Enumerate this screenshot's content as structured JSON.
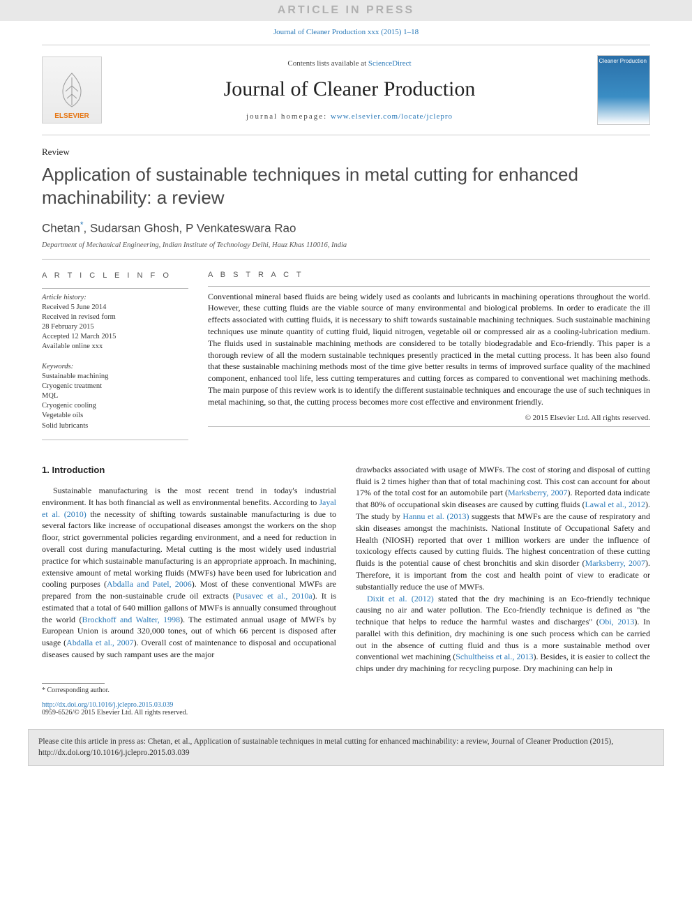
{
  "banner": {
    "text": "ARTICLE IN PRESS"
  },
  "topLink": {
    "journal": "Journal of Cleaner Production",
    "volume": "xxx (2015) 1–18"
  },
  "masthead": {
    "contentsPrefix": "Contents lists available at ",
    "contentsLink": "ScienceDirect",
    "journalName": "Journal of Cleaner Production",
    "homepagePrefix": "journal homepage: ",
    "homepageUrl": "www.elsevier.com/locate/jclepro",
    "publisherLogoText": "ELSEVIER",
    "coverTitle": "Cleaner Production"
  },
  "article": {
    "typeLabel": "Review",
    "title": "Application of sustainable techniques in metal cutting for enhanced machinability: a review",
    "authorsHtml": [
      "Chetan",
      ", Sudarsan Ghosh, P Venkateswara Rao"
    ],
    "corrMark": "*",
    "affiliation": "Department of Mechanical Engineering, Indian Institute of Technology Delhi, Hauz Khas 110016, India"
  },
  "info": {
    "heading": "A R T I C L E  I N F O",
    "historyHead": "Article history:",
    "history": [
      "Received 5 June 2014",
      "Received in revised form",
      "28 February 2015",
      "Accepted 12 March 2015",
      "Available online xxx"
    ],
    "keywordsHead": "Keywords:",
    "keywords": [
      "Sustainable machining",
      "Cryogenic treatment",
      "MQL",
      "Cryogenic cooling",
      "Vegetable oils",
      "Solid lubricants"
    ]
  },
  "abstract": {
    "heading": "A B S T R A C T",
    "text": "Conventional mineral based fluids are being widely used as coolants and lubricants in machining operations throughout the world. However, these cutting fluids are the viable source of many environmental and biological problems. In order to eradicate the ill effects associated with cutting fluids, it is necessary to shift towards sustainable machining techniques. Such sustainable machining techniques use minute quantity of cutting fluid, liquid nitrogen, vegetable oil or compressed air as a cooling-lubrication medium. The fluids used in sustainable machining methods are considered to be totally biodegradable and Eco-friendly. This paper is a thorough review of all the modern sustainable techniques presently practiced in the metal cutting process. It has been also found that these sustainable machining methods most of the time give better results in terms of improved surface quality of the machined component, enhanced tool life, less cutting temperatures and cutting forces as compared to conventional wet machining methods. The main purpose of this review work is to identify the different sustainable techniques and encourage the use of such techniques in metal machining, so that, the cutting process becomes more cost effective and environment friendly.",
    "copyright": "© 2015 Elsevier Ltd. All rights reserved."
  },
  "body": {
    "sectionNumber": "1.",
    "sectionTitle": "Introduction",
    "col1Runs": [
      {
        "t": "plain",
        "v": "Sustainable manufacturing is the most recent trend in today's industrial environment. It has both financial as well as environmental benefits. According to "
      },
      {
        "t": "cite",
        "v": "Jayal et al. (2010)"
      },
      {
        "t": "plain",
        "v": " the necessity of shifting towards sustainable manufacturing is due to several factors like increase of occupational diseases amongst the workers on the shop floor, strict governmental policies regarding environment, and a need for reduction in overall cost during manufacturing. Metal cutting is the most widely used industrial practice for which sustainable manufacturing is an appropriate approach. In machining, extensive amount of metal working fluids (MWFs) have been used for lubrication and cooling purposes ("
      },
      {
        "t": "cite",
        "v": "Abdalla and Patel, 2006"
      },
      {
        "t": "plain",
        "v": "). Most of these conventional MWFs are prepared from the non-sustainable crude oil extracts ("
      },
      {
        "t": "cite",
        "v": "Pusavec et al., 2010a"
      },
      {
        "t": "plain",
        "v": "). It is estimated that a total of 640 million gallons of MWFs is annually consumed throughout the world ("
      },
      {
        "t": "cite",
        "v": "Brockhoff and Walter, 1998"
      },
      {
        "t": "plain",
        "v": "). The estimated annual usage of MWFs by European Union is around 320,000 tones, out of which 66 percent is disposed after usage ("
      },
      {
        "t": "cite",
        "v": "Abdalla et al., 2007"
      },
      {
        "t": "plain",
        "v": "). Overall cost of maintenance to disposal and occupational diseases caused by such rampant uses are the major "
      }
    ],
    "col2aRuns": [
      {
        "t": "plain",
        "v": "drawbacks associated with usage of MWFs. The cost of storing and disposal of cutting fluid is 2 times higher than that of total machining cost. This cost can account for about 17% of the total cost for an automobile part ("
      },
      {
        "t": "cite",
        "v": "Marksberry, 2007"
      },
      {
        "t": "plain",
        "v": "). Reported data indicate that 80% of occupational skin diseases are caused by cutting fluids ("
      },
      {
        "t": "cite",
        "v": "Lawal et al., 2012"
      },
      {
        "t": "plain",
        "v": "). The study by "
      },
      {
        "t": "cite",
        "v": "Hannu et al. (2013)"
      },
      {
        "t": "plain",
        "v": " suggests that MWFs are the cause of respiratory and skin diseases amongst the machinists. National Institute of Occupational Safety and Health (NIOSH) reported that over 1 million workers are under the influence of toxicology effects caused by cutting fluids. The highest concentration of these cutting fluids is the potential cause of chest bronchitis and skin disorder ("
      },
      {
        "t": "cite",
        "v": "Marksberry, 2007"
      },
      {
        "t": "plain",
        "v": "). Therefore, it is important from the cost and health point of view to eradicate or substantially reduce the use of MWFs."
      }
    ],
    "col2bRuns": [
      {
        "t": "cite",
        "v": "Dixit et al. (2012)"
      },
      {
        "t": "plain",
        "v": " stated that the dry machining is an Eco-friendly technique causing no air and water pollution. The Eco-friendly technique is defined as \"the technique that helps to reduce the harmful wastes and discharges\" ("
      },
      {
        "t": "cite",
        "v": "Obi, 2013"
      },
      {
        "t": "plain",
        "v": "). In parallel with this definition, dry machining is one such process which can be carried out in the absence of cutting fluid and thus is a more sustainable method over conventional wet machining ("
      },
      {
        "t": "cite",
        "v": "Schultheiss et al., 2013"
      },
      {
        "t": "plain",
        "v": "). Besides, it is easier to collect the chips under dry machining for recycling purpose. Dry machining can help in "
      }
    ]
  },
  "footnote": {
    "text": "* Corresponding author."
  },
  "doi": {
    "url": "http://dx.doi.org/10.1016/j.jclepro.2015.03.039",
    "issn": "0959-6526/© 2015 Elsevier Ltd. All rights reserved."
  },
  "citeBox": {
    "text": "Please cite this article in press as: Chetan, et al., Application of sustainable techniques in metal cutting for enhanced machinability: a review, Journal of Cleaner Production (2015), http://dx.doi.org/10.1016/j.jclepro.2015.03.039"
  },
  "colors": {
    "bannerBg": "#e8e8e8",
    "bannerText": "#b0b0b0",
    "link": "#2878b8",
    "rule": "#bbbbbb",
    "elsevierOrange": "#e67817",
    "coverBlue": "#2a6fa8"
  },
  "typography": {
    "titleFontSize": 26,
    "journalNameFontSize": 30,
    "bodyFontSize": 12,
    "infoFontSize": 10.5
  }
}
